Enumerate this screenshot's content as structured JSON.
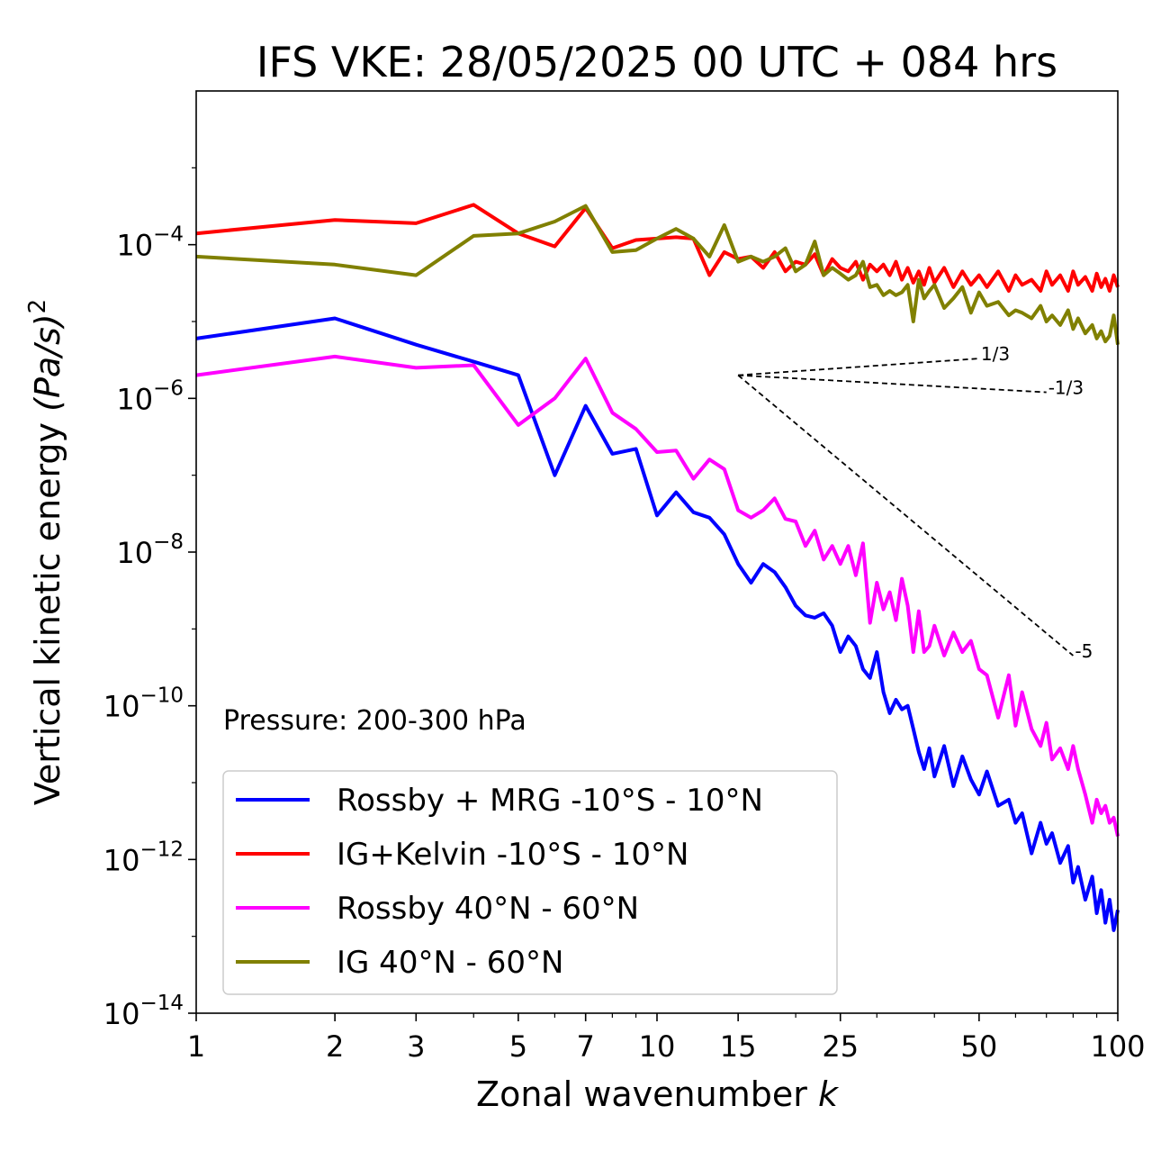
{
  "chart_data": {
    "type": "line",
    "title": "IFS VKE: 28/05/2025 00 UTC + 084 hrs",
    "xlabel": "Zonal wavenumber",
    "xlabel_var": "k",
    "ylabel": "Vertical kinetic energy",
    "ylabel_unit": "(Pa/s)",
    "ylabel_exp": "2",
    "xscale": "log",
    "yscale": "log",
    "xlim": [
      1,
      100
    ],
    "ylim": [
      1e-14,
      0.01
    ],
    "xticks": [
      1,
      2,
      3,
      5,
      7,
      10,
      15,
      25,
      50,
      100
    ],
    "xtick_labels": [
      "1",
      "2",
      "3",
      "5",
      "7",
      "10",
      "15",
      "25",
      "50",
      "100"
    ],
    "yticks": [
      -14,
      -12,
      -10,
      -8,
      -6,
      -4
    ],
    "ytick_base": "10",
    "ytick_exps": [
      "−14",
      "−12",
      "−10",
      "−8",
      "−6",
      "−4"
    ],
    "annotation": "Pressure: 200-300 hPa",
    "legend_position": "lower-left",
    "reference_slopes": [
      {
        "label": "1/3",
        "x": [
          15,
          50
        ],
        "y": [
          2e-06,
          3.3e-06
        ]
      },
      {
        "label": "-1/3",
        "x": [
          15,
          70
        ],
        "y": [
          2e-06,
          1.2e-06
        ]
      },
      {
        "label": "-5",
        "x": [
          15,
          80
        ],
        "y": [
          2e-06,
          4.5e-10
        ]
      }
    ],
    "series": [
      {
        "name": "Rossby + MRG -10°S - 10°N",
        "color": "#0000ff",
        "x": [
          1,
          2,
          3,
          4,
          5,
          6,
          7,
          8,
          9,
          10,
          11,
          12,
          13,
          14,
          15,
          16,
          17,
          18,
          19,
          20,
          21,
          22,
          23,
          24,
          25,
          26,
          27,
          28,
          29,
          30,
          31,
          32,
          33,
          34,
          35,
          36,
          37,
          38,
          39,
          40,
          42,
          44,
          46,
          48,
          50,
          52,
          55,
          58,
          60,
          62,
          65,
          68,
          70,
          72,
          75,
          78,
          80,
          82,
          85,
          88,
          90,
          92,
          94,
          96,
          98,
          100
        ],
        "y": [
          6e-06,
          1.1e-05,
          5e-06,
          3e-06,
          2e-06,
          1e-07,
          8e-07,
          1.9e-07,
          2.2e-07,
          3e-08,
          6e-08,
          3.3e-08,
          2.8e-08,
          1.7e-08,
          7e-09,
          4e-09,
          7e-09,
          5.5e-09,
          3.5e-09,
          2e-09,
          1.5e-09,
          1.4e-09,
          1.6e-09,
          1.1e-09,
          5e-10,
          8e-10,
          6e-10,
          3e-10,
          2.3e-10,
          5e-10,
          1.5e-10,
          8e-11,
          1.2e-10,
          9e-11,
          1e-10,
          5e-11,
          2.5e-11,
          1.5e-11,
          2.8e-11,
          1.2e-11,
          3e-11,
          9e-12,
          2.2e-11,
          1.1e-11,
          7e-12,
          1.4e-11,
          5e-12,
          6e-12,
          3e-12,
          4e-12,
          1.2e-12,
          3e-12,
          1.6e-12,
          2.2e-12,
          9e-13,
          1.5e-12,
          5e-13,
          8e-13,
          3e-13,
          6e-13,
          2e-13,
          4e-13,
          1.5e-13,
          3e-13,
          1.2e-13,
          2.2e-13
        ]
      },
      {
        "name": "IG+Kelvin -10°S - 10°N",
        "color": "#ff0000",
        "x": [
          1,
          2,
          3,
          4,
          5,
          6,
          7,
          8,
          9,
          10,
          11,
          12,
          13,
          14,
          15,
          16,
          17,
          18,
          19,
          20,
          21,
          22,
          23,
          24,
          25,
          26,
          27,
          28,
          29,
          30,
          31,
          32,
          33,
          34,
          35,
          36,
          37,
          38,
          39,
          40,
          42,
          44,
          46,
          48,
          50,
          52,
          55,
          58,
          60,
          62,
          65,
          68,
          70,
          72,
          75,
          78,
          80,
          82,
          85,
          88,
          90,
          92,
          94,
          96,
          98,
          100
        ],
        "y": [
          0.00014,
          0.00021,
          0.00019,
          0.00033,
          0.00014,
          9.5e-05,
          0.0003,
          9e-05,
          0.000115,
          0.00012,
          0.000125,
          0.00012,
          4e-05,
          8e-05,
          6.5e-05,
          7e-05,
          5e-05,
          8e-05,
          4.5e-05,
          6e-05,
          5.5e-05,
          7.5e-05,
          4e-05,
          6.5e-05,
          5e-05,
          4.5e-05,
          6e-05,
          3.5e-05,
          5.5e-05,
          4.5e-05,
          5.5e-05,
          4e-05,
          6e-05,
          3.5e-05,
          5e-05,
          3.2e-05,
          4.5e-05,
          3e-05,
          5e-05,
          3.2e-05,
          5e-05,
          2.8e-05,
          4.5e-05,
          3e-05,
          4e-05,
          2.8e-05,
          4.5e-05,
          2.5e-05,
          4e-05,
          3e-05,
          3.5e-05,
          2.5e-05,
          4.5e-05,
          3e-05,
          4e-05,
          2.5e-05,
          4.5e-05,
          3e-05,
          3.8e-05,
          2.5e-05,
          4.2e-05,
          2.8e-05,
          3.6e-05,
          2.5e-05,
          4e-05,
          2.8e-05
        ]
      },
      {
        "name": "Rossby 40°N - 60°N",
        "color": "#ff00ff",
        "x": [
          1,
          2,
          3,
          4,
          5,
          6,
          7,
          8,
          9,
          10,
          11,
          12,
          13,
          14,
          15,
          16,
          17,
          18,
          19,
          20,
          21,
          22,
          23,
          24,
          25,
          26,
          27,
          28,
          29,
          30,
          31,
          32,
          33,
          34,
          35,
          36,
          37,
          38,
          39,
          40,
          42,
          44,
          46,
          48,
          50,
          52,
          55,
          58,
          60,
          62,
          65,
          68,
          70,
          72,
          75,
          78,
          80,
          82,
          85,
          88,
          90,
          92,
          94,
          96,
          98,
          100
        ],
        "y": [
          2e-06,
          3.5e-06,
          2.5e-06,
          2.7e-06,
          4.5e-07,
          1e-06,
          3.3e-06,
          6.5e-07,
          4e-07,
          2e-07,
          2.1e-07,
          9e-08,
          1.6e-07,
          1.2e-07,
          3.5e-08,
          2.8e-08,
          3.5e-08,
          5e-08,
          2.7e-08,
          2.5e-08,
          1.2e-08,
          1.9e-08,
          8e-09,
          1.2e-08,
          7e-09,
          1.2e-08,
          5e-09,
          1.3e-08,
          1.2e-09,
          4e-09,
          1.8e-09,
          3e-09,
          1.3e-09,
          4.5e-09,
          2e-09,
          5e-10,
          1.7e-09,
          5e-10,
          6e-10,
          1.1e-09,
          4.5e-10,
          9e-10,
          5e-10,
          7e-10,
          3e-10,
          2.5e-10,
          7e-11,
          2.5e-10,
          5.5e-11,
          1.5e-10,
          5e-11,
          3e-11,
          6e-11,
          2e-11,
          2.8e-11,
          1.5e-11,
          3e-11,
          1.5e-11,
          7e-12,
          3e-12,
          6e-12,
          4e-12,
          5e-12,
          3e-12,
          3.5e-12,
          2e-12
        ]
      },
      {
        "name": "IG 40°N - 60°N",
        "color": "#808000",
        "x": [
          1,
          2,
          3,
          4,
          5,
          6,
          7,
          8,
          9,
          10,
          11,
          12,
          13,
          14,
          15,
          16,
          17,
          18,
          19,
          20,
          21,
          22,
          23,
          24,
          25,
          26,
          27,
          28,
          29,
          30,
          31,
          32,
          33,
          34,
          35,
          36,
          37,
          38,
          39,
          40,
          42,
          44,
          46,
          48,
          50,
          52,
          55,
          58,
          60,
          62,
          65,
          68,
          70,
          72,
          75,
          78,
          80,
          82,
          85,
          88,
          90,
          92,
          94,
          96,
          98,
          100
        ],
        "y": [
          7e-05,
          5.5e-05,
          4e-05,
          0.00013,
          0.00014,
          0.0002,
          0.00032,
          8e-05,
          8.5e-05,
          0.00012,
          0.00016,
          0.00012,
          7e-05,
          0.00018,
          6e-05,
          7e-05,
          6e-05,
          7e-05,
          9e-05,
          4.5e-05,
          5.5e-05,
          0.00011,
          4e-05,
          5e-05,
          4.2e-05,
          3.5e-05,
          4e-05,
          6e-05,
          2.8e-05,
          3e-05,
          2.2e-05,
          2.5e-05,
          2.2e-05,
          2.4e-05,
          3e-05,
          1e-05,
          3.5e-05,
          2e-05,
          2.5e-05,
          3e-05,
          1.5e-05,
          2e-05,
          2.8e-05,
          1.3e-05,
          2.4e-05,
          1.6e-05,
          1.8e-05,
          1.2e-05,
          1.4e-05,
          1.3e-05,
          1.1e-05,
          1.6e-05,
          1e-05,
          1.2e-05,
          9e-06,
          1.4e-05,
          8e-06,
          1.1e-05,
          7e-06,
          9e-06,
          6e-06,
          7.5e-06,
          5.5e-06,
          6.5e-06,
          1.2e-05,
          5e-06
        ]
      }
    ]
  }
}
